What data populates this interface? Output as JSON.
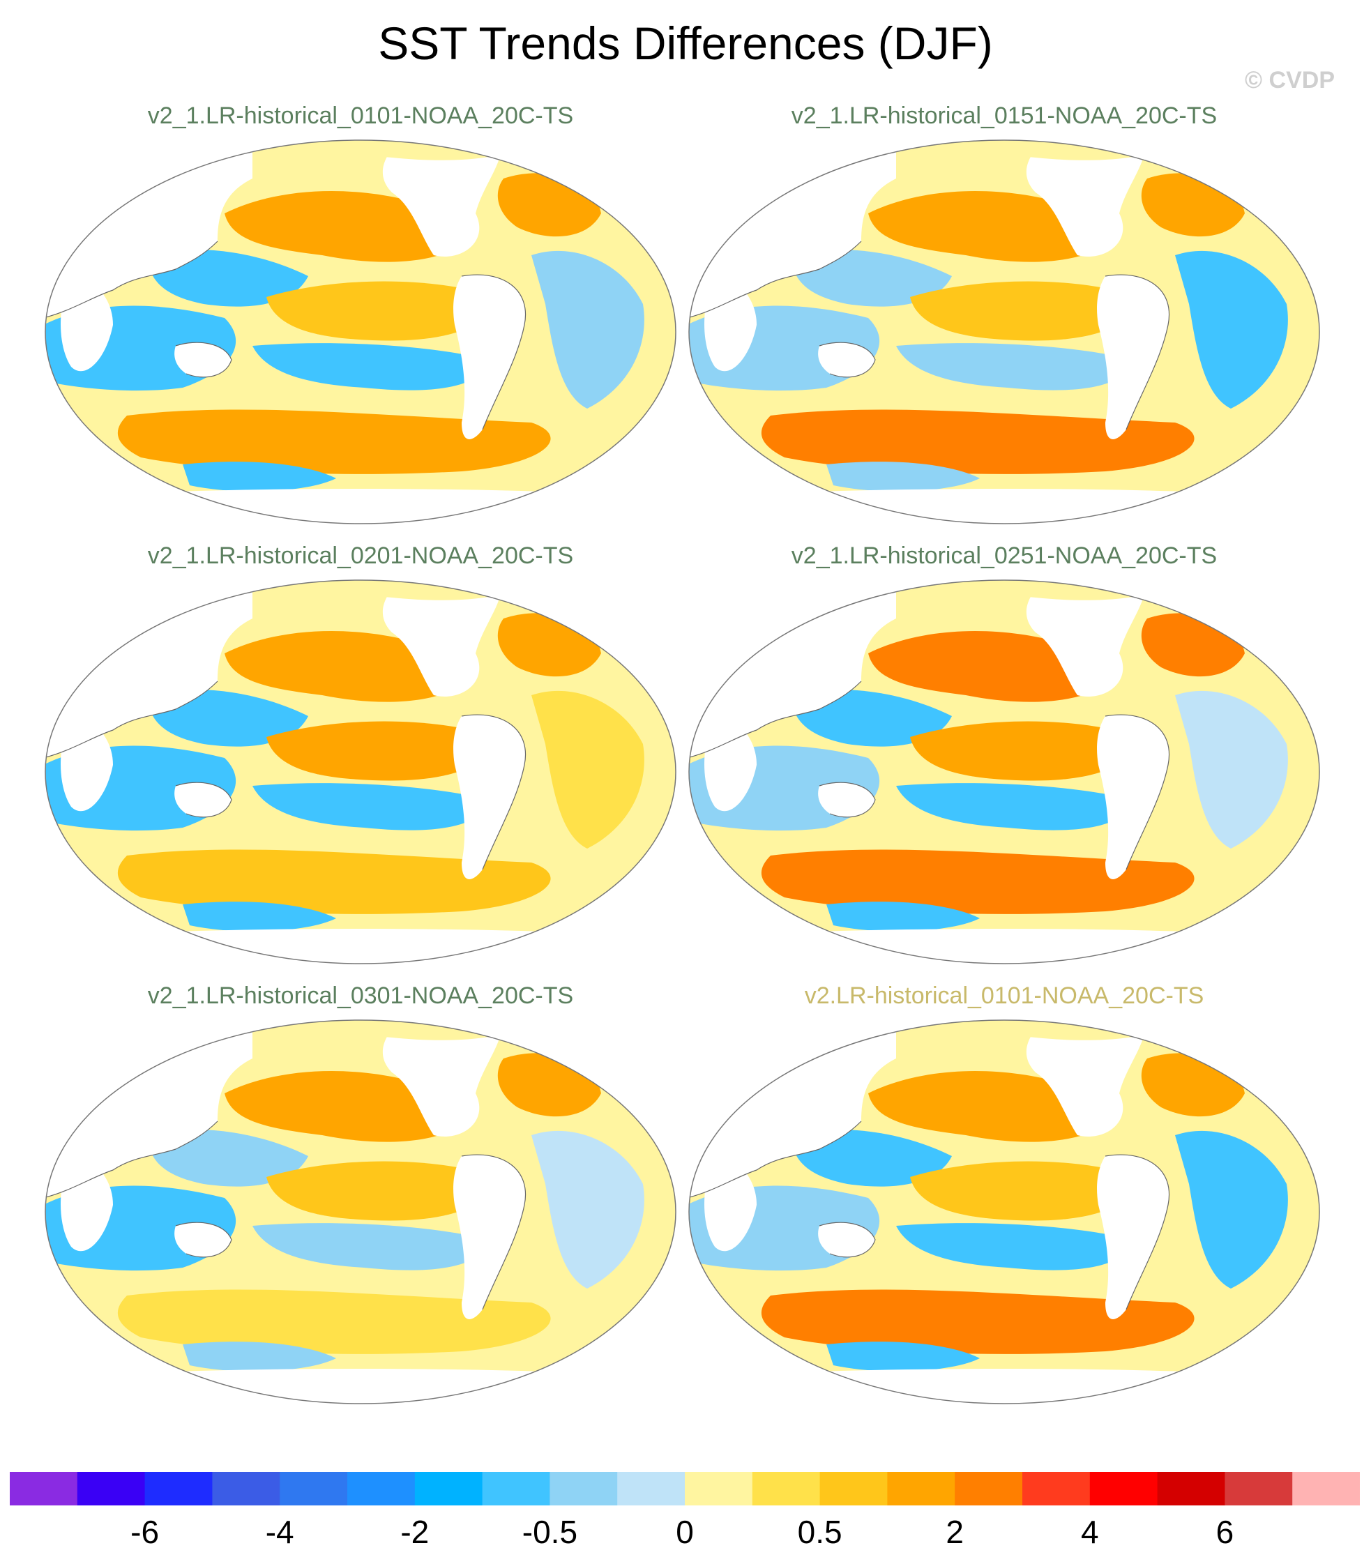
{
  "figure": {
    "title": "SST Trends Differences (DJF)",
    "watermark": "© CVDP"
  },
  "panels": [
    {
      "title": "v2_1.LR-historical_0101-NOAA_20C-TS",
      "style": "normal"
    },
    {
      "title": "v2_1.LR-historical_0151-NOAA_20C-TS",
      "style": "normal"
    },
    {
      "title": "v2_1.LR-historical_0201-NOAA_20C-TS",
      "style": "normal"
    },
    {
      "title": "v2_1.LR-historical_0251-NOAA_20C-TS",
      "style": "normal"
    },
    {
      "title": "v2_1.LR-historical_0301-NOAA_20C-TS",
      "style": "normal"
    },
    {
      "title": "v2.LR-historical_0101-NOAA_20C-TS",
      "style": "alt"
    }
  ],
  "colorbar": {
    "colors": [
      "#8a2be2",
      "#3a00f5",
      "#1e2cff",
      "#3b5ce6",
      "#2f78f0",
      "#1e90ff",
      "#00b2ff",
      "#40c4ff",
      "#8fd3f5",
      "#bfe3f8",
      "#fff5a0",
      "#ffe14a",
      "#ffc61a",
      "#ffa500",
      "#ff7f00",
      "#ff3b1e",
      "#ff0000",
      "#d40000",
      "#d73a3a",
      "#ffb3b3"
    ],
    "tick_labels": [
      "-6",
      "-4",
      "-2",
      "-0.5",
      "0",
      "0.5",
      "2",
      "4",
      "6"
    ],
    "tick_boundaries": [
      2,
      4,
      6,
      8,
      10,
      12,
      14,
      16,
      18
    ]
  }
}
